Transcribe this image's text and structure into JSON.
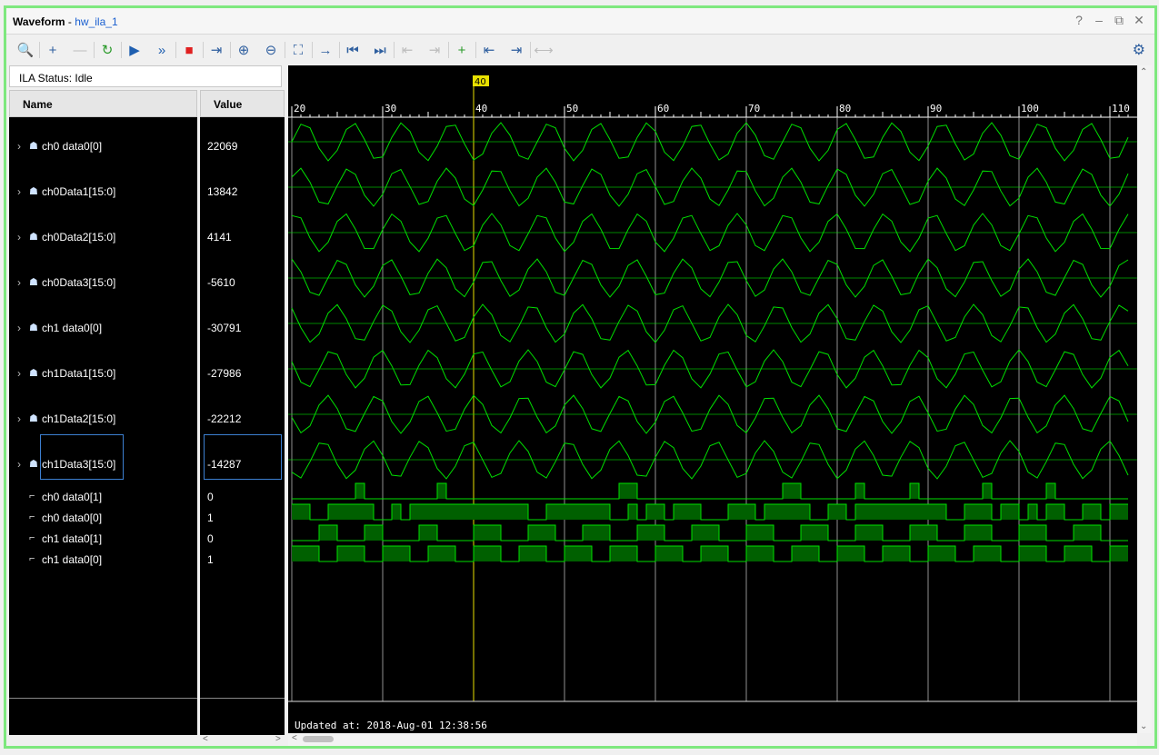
{
  "window": {
    "title": "Waveform",
    "separator": " - ",
    "subtitle": "hw_ila_1",
    "controls": [
      "?",
      "–",
      "⧉",
      "✕"
    ]
  },
  "toolbar": {
    "buttons": [
      {
        "icon": "search-icon",
        "glyph": "🔍",
        "name": "search-button",
        "enabled": true
      },
      {
        "icon": "plus-icon",
        "glyph": "+",
        "name": "add-button",
        "enabled": true
      },
      {
        "icon": "minus-icon",
        "glyph": "—",
        "name": "remove-button",
        "enabled": false
      },
      {
        "icon": "refresh-icon",
        "glyph": "↻",
        "name": "auto-retrigger-button",
        "enabled": true
      },
      {
        "icon": "play-icon",
        "glyph": "▶",
        "name": "run-trigger-button",
        "enabled": true
      },
      {
        "icon": "fast-forward-icon",
        "glyph": "»",
        "name": "run-immediate-button",
        "enabled": true
      },
      {
        "icon": "stop-icon",
        "glyph": "■",
        "name": "stop-button",
        "enabled": true
      },
      {
        "icon": "export-icon",
        "glyph": "⇥",
        "name": "export-button",
        "enabled": true
      },
      {
        "icon": "zoom-in-icon",
        "glyph": "⊕",
        "name": "zoom-in-button",
        "enabled": true
      },
      {
        "icon": "zoom-out-icon",
        "glyph": "⊖",
        "name": "zoom-out-button",
        "enabled": true
      },
      {
        "icon": "zoom-fit-icon",
        "glyph": "⛶",
        "name": "zoom-fit-button",
        "enabled": true
      },
      {
        "icon": "go-to-cursor-icon",
        "glyph": "→",
        "name": "go-to-cursor-button",
        "enabled": true
      },
      {
        "icon": "go-to-start-icon",
        "glyph": "⏮",
        "name": "go-to-start-button",
        "enabled": true
      },
      {
        "icon": "go-to-end-icon",
        "glyph": "⏭",
        "name": "go-to-end-button",
        "enabled": true
      },
      {
        "icon": "prev-transition-icon",
        "glyph": "⇤",
        "name": "prev-transition-button",
        "enabled": false
      },
      {
        "icon": "next-transition-icon",
        "glyph": "⇥",
        "name": "next-transition-button",
        "enabled": false
      },
      {
        "icon": "add-marker-icon",
        "glyph": "+",
        "name": "add-marker-button",
        "enabled": true
      },
      {
        "icon": "prev-marker-icon",
        "glyph": "⇤",
        "name": "prev-marker-button",
        "enabled": true
      },
      {
        "icon": "next-marker-icon",
        "glyph": "⇥",
        "name": "next-marker-button",
        "enabled": true
      },
      {
        "icon": "swap-cursors-icon",
        "glyph": "⟷",
        "name": "swap-cursors-button",
        "enabled": false
      }
    ],
    "settings_icon": "gear-icon",
    "settings_glyph": "⚙"
  },
  "ila_status": "ILA Status:  Idle",
  "columns": {
    "name": "Name",
    "value": "Value"
  },
  "signals": [
    {
      "name": "ch0 data0[0]",
      "value": "22069",
      "kind": "analog"
    },
    {
      "name": "ch0Data1[15:0]",
      "value": "13842",
      "kind": "analog"
    },
    {
      "name": "ch0Data2[15:0]",
      "value": "4141",
      "kind": "analog"
    },
    {
      "name": "ch0Data3[15:0]",
      "value": "-5610",
      "kind": "analog"
    },
    {
      "name": "ch1 data0[0]",
      "value": "-30791",
      "kind": "analog"
    },
    {
      "name": "ch1Data1[15:0]",
      "value": "-27986",
      "kind": "analog"
    },
    {
      "name": "ch1Data2[15:0]",
      "value": "-22212",
      "kind": "analog"
    },
    {
      "name": "ch1Data3[15:0]",
      "value": "-14287",
      "kind": "analog",
      "selected": true
    },
    {
      "name": "ch0 data0[1]",
      "value": "0",
      "kind": "digital"
    },
    {
      "name": "ch0 data0[0]",
      "value": "1",
      "kind": "digital"
    },
    {
      "name": "ch1 data0[1]",
      "value": "0",
      "kind": "digital"
    },
    {
      "name": "ch1 data0[0]",
      "value": "1",
      "kind": "digital"
    }
  ],
  "timeline": {
    "ticks": [
      "20",
      "30",
      "40",
      "50",
      "60",
      "70",
      "80",
      "90",
      "100",
      "110"
    ],
    "cursor": "40"
  },
  "updated": "Updated at: 2018-Aug-01 12:38:56",
  "colors": {
    "wave": "#00e000",
    "cursor": "#e8e000",
    "bus_fill": "#006000",
    "grid": "#cfcfcf"
  }
}
